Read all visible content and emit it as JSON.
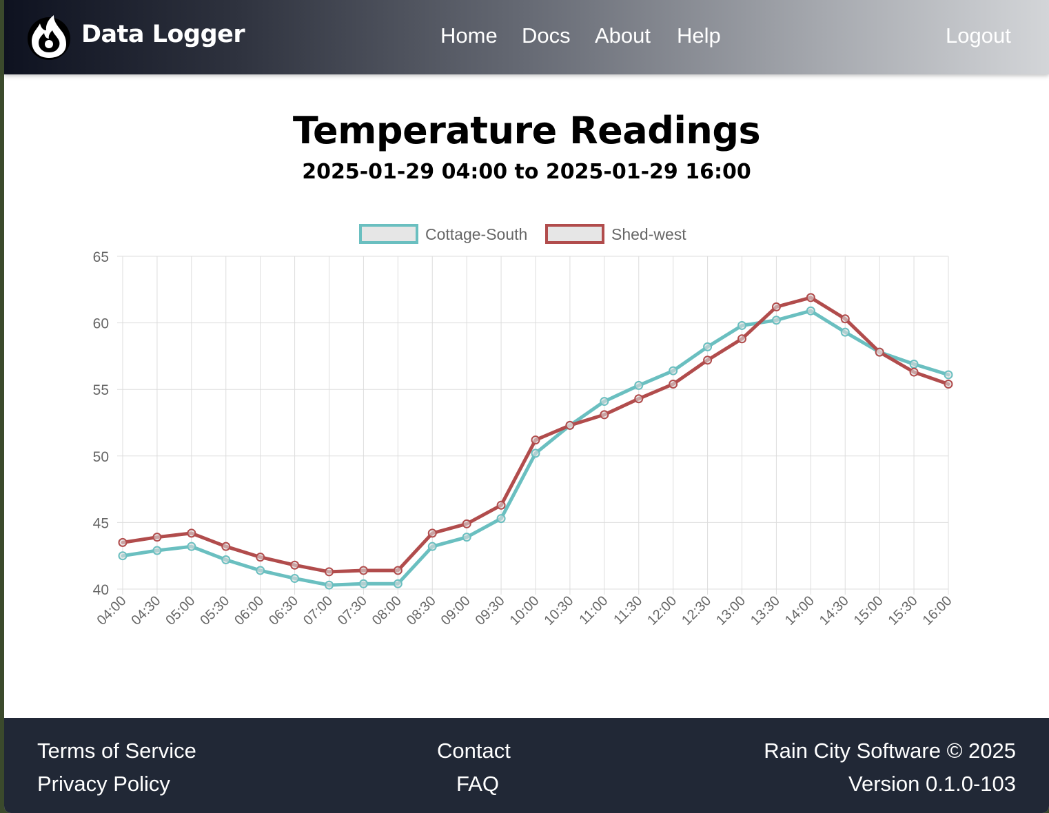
{
  "app": {
    "brand": "Data Logger",
    "logo_icon": "flame-icon"
  },
  "nav": {
    "links": [
      {
        "label": "Home"
      },
      {
        "label": "Docs"
      },
      {
        "label": "About"
      },
      {
        "label": "Help"
      }
    ],
    "logout": "Logout"
  },
  "page": {
    "title": "Temperature Readings",
    "subtitle": "2025-01-29 04:00 to 2025-01-29 16:00"
  },
  "chart_data": {
    "type": "line",
    "title": "",
    "xlabel": "",
    "ylabel": "",
    "ylim": [
      40,
      65
    ],
    "yticks": [
      40,
      45,
      50,
      55,
      60,
      65
    ],
    "grid": true,
    "legend_position": "top-center",
    "categories": [
      "04:00",
      "04:30",
      "05:00",
      "05:30",
      "06:00",
      "06:30",
      "07:00",
      "07:30",
      "08:00",
      "08:30",
      "09:00",
      "09:30",
      "10:00",
      "10:30",
      "11:00",
      "11:30",
      "12:00",
      "12:30",
      "13:00",
      "13:30",
      "14:00",
      "14:30",
      "15:00",
      "15:30",
      "16:00"
    ],
    "series": [
      {
        "name": "Cottage-South",
        "color": "#6abfc0",
        "values": [
          42.5,
          42.9,
          43.2,
          42.2,
          41.4,
          40.8,
          40.3,
          40.4,
          40.4,
          43.2,
          43.9,
          45.3,
          50.2,
          52.3,
          54.1,
          55.3,
          56.4,
          58.2,
          59.8,
          60.2,
          60.9,
          59.3,
          57.8,
          56.9,
          56.1
        ]
      },
      {
        "name": "Shed-west",
        "color": "#b14c4c",
        "values": [
          43.5,
          43.9,
          44.2,
          43.2,
          42.4,
          41.8,
          41.3,
          41.4,
          41.4,
          44.2,
          44.9,
          46.3,
          51.2,
          52.3,
          53.1,
          54.3,
          55.4,
          57.2,
          58.8,
          61.2,
          61.9,
          60.3,
          57.8,
          56.3,
          55.4
        ]
      }
    ]
  },
  "footer": {
    "terms": "Terms of Service",
    "privacy": "Privacy Policy",
    "contact": "Contact",
    "faq": "FAQ",
    "copyright": "Rain City Software © 2025",
    "version": "Version 0.1.0-103"
  }
}
